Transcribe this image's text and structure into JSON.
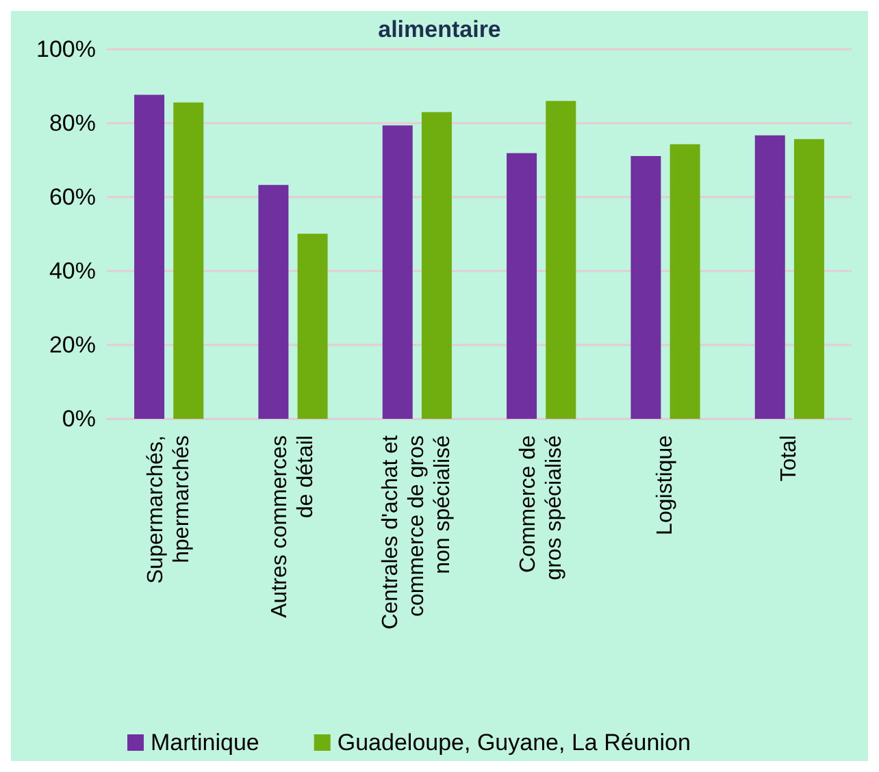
{
  "chart_data": {
    "type": "bar",
    "title": "alimentaire",
    "categories": [
      "Supermarchés,\nhpermarchés",
      "Autres commerces\nde détail",
      "Centrales d'achat et\ncommerce de gros\nnon spécialisé",
      "Commerce de\ngros spécialisé",
      "Logistique",
      "Total"
    ],
    "series": [
      {
        "name": "Martinique",
        "color": "#7030a0",
        "values": [
          87.7,
          63.3,
          79.4,
          71.9,
          71.1,
          76.7
        ]
      },
      {
        "name": "Guadeloupe, Guyane, La Réunion",
        "color": "#70ad0e",
        "values": [
          85.6,
          50.1,
          83.0,
          86.0,
          74.3,
          75.7
        ]
      }
    ],
    "ylim": [
      0,
      100
    ],
    "yticks": [
      {
        "value": 0,
        "label": "0%"
      },
      {
        "value": 20,
        "label": "20%"
      },
      {
        "value": 40,
        "label": "40%"
      },
      {
        "value": 60,
        "label": "60%"
      },
      {
        "value": 80,
        "label": "80%"
      },
      {
        "value": 100,
        "label": "100%"
      }
    ],
    "grid": "y",
    "legend": "bottom"
  }
}
